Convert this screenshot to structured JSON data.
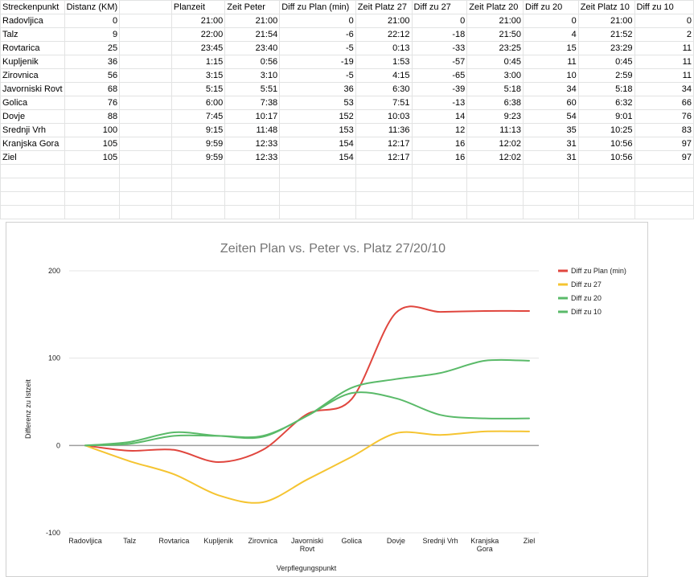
{
  "sheet": {
    "columns": [
      "Streckenpunkt",
      "Distanz (KM)",
      "",
      "Planzeit",
      "Zeit Peter",
      "Diff zu Plan (min)",
      "Zeit Platz 27",
      "Diff zu 27",
      "Zeit Platz 20",
      "Diff zu 20",
      "Zeit Platz 10",
      "Diff zu 10"
    ],
    "rows": [
      [
        "Radovljica",
        "0",
        "",
        "21:00",
        "21:00",
        "0",
        "21:00",
        "0",
        "21:00",
        "0",
        "21:00",
        "0"
      ],
      [
        "Talz",
        "9",
        "",
        "22:00",
        "21:54",
        "-6",
        "22:12",
        "-18",
        "21:50",
        "4",
        "21:52",
        "2"
      ],
      [
        "Rovtarica",
        "25",
        "",
        "23:45",
        "23:40",
        "-5",
        "0:13",
        "-33",
        "23:25",
        "15",
        "23:29",
        "11"
      ],
      [
        "Kupljenik",
        "36",
        "",
        "1:15",
        "0:56",
        "-19",
        "1:53",
        "-57",
        "0:45",
        "11",
        "0:45",
        "11"
      ],
      [
        "Zirovnica",
        "56",
        "",
        "3:15",
        "3:10",
        "-5",
        "4:15",
        "-65",
        "3:00",
        "10",
        "2:59",
        "11"
      ],
      [
        "Javorniski Rovt",
        "68",
        "",
        "5:15",
        "5:51",
        "36",
        "6:30",
        "-39",
        "5:18",
        "34",
        "5:18",
        "34"
      ],
      [
        "Golica",
        "76",
        "",
        "6:00",
        "7:38",
        "53",
        "7:51",
        "-13",
        "6:38",
        "60",
        "6:32",
        "66"
      ],
      [
        "Dovje",
        "88",
        "",
        "7:45",
        "10:17",
        "152",
        "10:03",
        "14",
        "9:23",
        "54",
        "9:01",
        "76"
      ],
      [
        "Srednji Vrh",
        "100",
        "",
        "9:15",
        "11:48",
        "153",
        "11:36",
        "12",
        "11:13",
        "35",
        "10:25",
        "83"
      ],
      [
        "Kranjska Gora",
        "105",
        "",
        "9:59",
        "12:33",
        "154",
        "12:17",
        "16",
        "12:02",
        "31",
        "10:56",
        "97"
      ],
      [
        "Ziel",
        "105",
        "",
        "9:59",
        "12:33",
        "154",
        "12:17",
        "16",
        "12:02",
        "31",
        "10:56",
        "97"
      ]
    ]
  },
  "chart_data": {
    "type": "line",
    "title": "Zeiten Plan vs. Peter vs. Platz 27/20/10",
    "xlabel": "Verpflegungspunkt",
    "ylabel": "Differenz zu Istzeit",
    "categories": [
      "Radovljica",
      "Talz",
      "Rovtarica",
      "Kupljenik",
      "Zirovnica",
      "Javorniski Rovt",
      "Golica",
      "Dovje",
      "Srednji Vrh",
      "Kranjska Gora",
      "Ziel"
    ],
    "ylim": [
      -100,
      200
    ],
    "yticks": [
      "200",
      "100",
      "0",
      "-100"
    ],
    "grid": true,
    "legend_position": "right",
    "series": [
      {
        "name": "Diff zu Plan (min)",
        "color": "#e0463e",
        "values": [
          0,
          -6,
          -5,
          -19,
          -5,
          36,
          53,
          152,
          153,
          154,
          154
        ]
      },
      {
        "name": "Diff zu 27",
        "color": "#f5c431",
        "values": [
          0,
          -18,
          -33,
          -57,
          -65,
          -39,
          -13,
          14,
          12,
          16,
          16
        ]
      },
      {
        "name": "Diff zu 20",
        "color": "#5aba69",
        "values": [
          0,
          4,
          15,
          11,
          10,
          34,
          60,
          54,
          35,
          31,
          31
        ]
      },
      {
        "name": "Diff zu 10",
        "color": "#5aba69",
        "values": [
          0,
          2,
          11,
          11,
          11,
          34,
          66,
          76,
          83,
          97,
          97
        ]
      }
    ]
  }
}
